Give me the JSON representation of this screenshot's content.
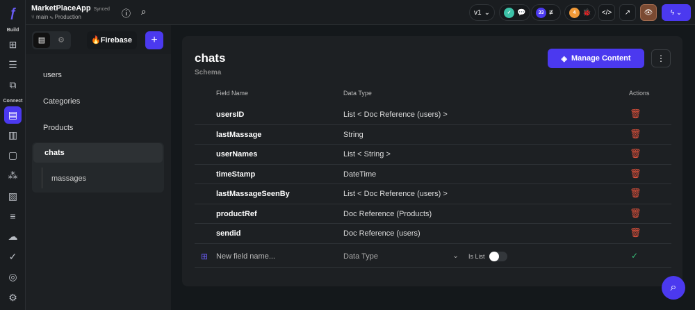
{
  "app": {
    "name": "MarketPlaceApp",
    "sync_status": "Synced",
    "branch": "main",
    "environment": "Production"
  },
  "rail": {
    "build_label": "Build",
    "connect_label": "Connect"
  },
  "topbar": {
    "version": "v1",
    "issues_count": "33",
    "bugs_count": "4"
  },
  "panel": {
    "provider": "Firebase",
    "collections": [
      "users",
      "Categories",
      "Products",
      "chats"
    ],
    "subcollections": [
      "massages"
    ],
    "selected": "chats"
  },
  "main": {
    "title": "chats",
    "subtitle": "Schema",
    "manage_label": "Manage Content",
    "headers": {
      "field": "Field Name",
      "type": "Data Type",
      "actions": "Actions"
    },
    "fields": [
      {
        "name": "usersID",
        "type": "List < Doc Reference (users) >"
      },
      {
        "name": "lastMassage",
        "type": "String"
      },
      {
        "name": "userNames",
        "type": "List < String >"
      },
      {
        "name": "timeStamp",
        "type": "DateTime"
      },
      {
        "name": "lastMassageSeenBy",
        "type": "List < Doc Reference (users) >"
      },
      {
        "name": "productRef",
        "type": "Doc Reference (Products)"
      },
      {
        "name": "sendid",
        "type": "Doc Reference (users)"
      }
    ],
    "new_field": {
      "placeholder": "New field name...",
      "type_placeholder": "Data Type",
      "is_list_label": "Is List",
      "is_list": false
    }
  },
  "colors": {
    "accent": "#4b39ef",
    "delete": "#e5533d",
    "confirm": "#39c07a"
  }
}
